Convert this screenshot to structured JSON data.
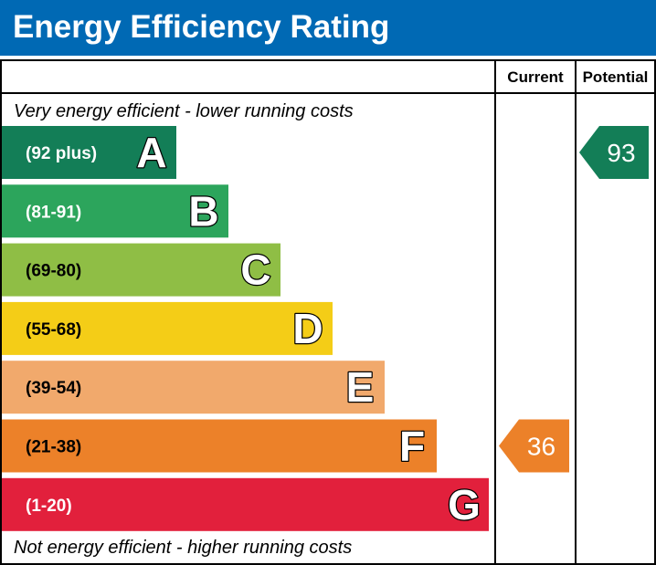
{
  "title": "Energy Efficiency Rating",
  "chart_data": {
    "type": "bar",
    "title": "Energy Efficiency Rating",
    "columns": [
      "Current",
      "Potential"
    ],
    "top_caption": "Very energy efficient - lower running costs",
    "bottom_caption": "Not energy efficient - higher running costs",
    "bands": [
      {
        "letter": "A",
        "range": "(92 plus)",
        "min": 92,
        "max": 100,
        "color": "#137e57"
      },
      {
        "letter": "B",
        "range": "(81-91)",
        "min": 81,
        "max": 91,
        "color": "#2ca55c"
      },
      {
        "letter": "C",
        "range": "(69-80)",
        "min": 69,
        "max": 80,
        "color": "#8fbe45"
      },
      {
        "letter": "D",
        "range": "(55-68)",
        "min": 55,
        "max": 68,
        "color": "#f4cd17"
      },
      {
        "letter": "E",
        "range": "(39-54)",
        "min": 39,
        "max": 54,
        "color": "#f1a96c"
      },
      {
        "letter": "F",
        "range": "(21-38)",
        "min": 21,
        "max": 38,
        "color": "#ec8129"
      },
      {
        "letter": "G",
        "range": "(1-20)",
        "min": 1,
        "max": 20,
        "color": "#e2203c"
      }
    ],
    "current": {
      "value": 36,
      "band": "F",
      "color": "#ec8129"
    },
    "potential": {
      "value": 93,
      "band": "A",
      "color": "#137e57"
    }
  },
  "colors": {
    "title_bar": "#0069b4",
    "title_text": "#ffffff",
    "border": "#000000"
  }
}
